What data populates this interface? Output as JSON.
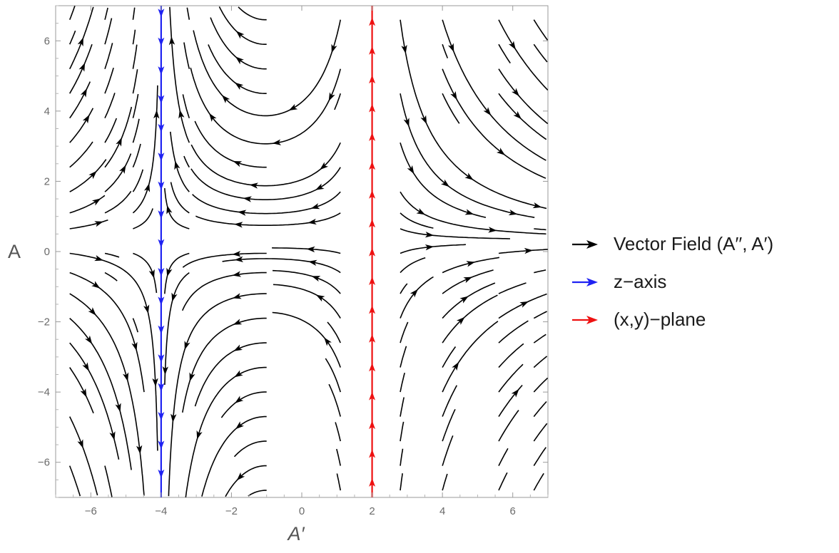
{
  "chart_data": {
    "type": "streamplot",
    "title": "",
    "xlabel": "A′",
    "ylabel": "A",
    "xlim": [
      -7,
      7
    ],
    "ylim": [
      -7,
      7
    ],
    "x_ticks": [
      "−6",
      "−4",
      "−2",
      "0",
      "2",
      "4",
      "6"
    ],
    "y_ticks": [
      "−6",
      "−4",
      "−2",
      "0",
      "2",
      "4",
      "6"
    ],
    "legend_position": "right",
    "field": {
      "fixed_lines_x": [
        -4,
        2
      ],
      "separatrix_y": 0.3,
      "color": "#000000"
    },
    "series": [
      {
        "name": "Vector Field (A′′, A′)",
        "color": "#000000",
        "type": "streamlines"
      },
      {
        "name": "z−axis",
        "color": "#1f22f2",
        "type": "vertical-line",
        "x": -4,
        "direction": "down"
      },
      {
        "name": "(x,y)−plane",
        "color": "#ee1111",
        "type": "vertical-line",
        "x": 2,
        "direction": "up"
      }
    ]
  }
}
